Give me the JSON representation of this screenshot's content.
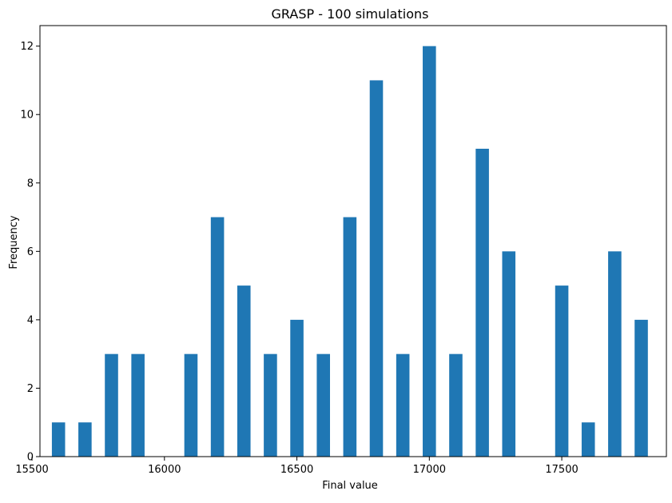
{
  "chart_data": {
    "type": "bar",
    "title": "GRASP - 100 simulations",
    "xlabel": "Final value",
    "ylabel": "Frequency",
    "bar_color": "#1f77b4",
    "bin_width": 50,
    "x": [
      15600,
      15700,
      15800,
      15900,
      16100,
      16200,
      16300,
      16400,
      16500,
      16600,
      16700,
      16800,
      16900,
      17000,
      17100,
      17200,
      17300,
      17500,
      17600,
      17700,
      17800
    ],
    "values": [
      1,
      1,
      3,
      3,
      3,
      7,
      5,
      3,
      4,
      3,
      7,
      11,
      3,
      12,
      3,
      9,
      6,
      5,
      1,
      6,
      4
    ],
    "xlim": [
      15530,
      17895
    ],
    "ylim": [
      0,
      12.6
    ],
    "xticks": [
      15500,
      16000,
      16500,
      17000,
      17500
    ],
    "xtick_labels": [
      "15500",
      "16000",
      "16500",
      "17000",
      "17500"
    ],
    "yticks": [
      0,
      2,
      4,
      6,
      8,
      10,
      12
    ],
    "ytick_labels": [
      "0",
      "2",
      "4",
      "6",
      "8",
      "10",
      "12"
    ],
    "grid": false
  }
}
